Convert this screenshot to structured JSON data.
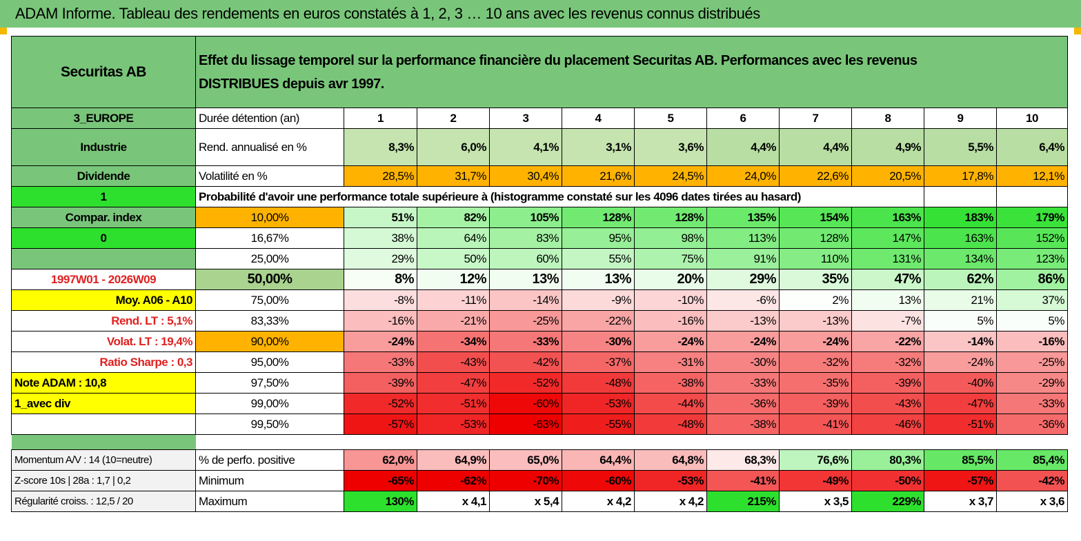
{
  "title": "ADAM Informe. Tableau des rendements en euros constatés à 1, 2, 3 … 10 ans avec les revenus connus distribués",
  "header": {
    "name": "Securitas AB",
    "description": "Effet du lissage temporel sur la performance financière du placement Securitas AB. Performances avec les revenus DISTRIBUES depuis avr 1997."
  },
  "left": {
    "region": "3_EUROPE",
    "sector": "Industrie",
    "div_label": "Dividende",
    "flag1": "1",
    "compar": "Compar. index",
    "flag0": "0",
    "period": "1997W01 - 2026W09",
    "moy": "Moy. A06 - A10",
    "rend_lt": "Rend. LT :   5,1%",
    "volat_lt": "Volat. LT :   19,4%",
    "sharpe": "Ratio Sharpe :     0,3",
    "note": "Note ADAM : 10,8",
    "avec_div": "1_avec div",
    "momentum": "Momentum A/V : 14 (10=neutre)",
    "zscore": "Z-score 10s | 28a : 1,7 | 0,2",
    "regularite": "Régularité croiss. : 12,5 / 20"
  },
  "labels": {
    "duree": "Durée détention (an)",
    "rend": "Rend. annualisé en %",
    "vol": "Volatilité en %",
    "proba": "Probabilité d'avoir une performance totale supérieure à (histogramme constaté sur les 4096 dates tirées au hasard)",
    "positive": "% de perfo. positive",
    "minimum": "Minimum",
    "maximum": "Maximum"
  },
  "years": [
    "1",
    "2",
    "3",
    "4",
    "5",
    "6",
    "7",
    "8",
    "9",
    "10"
  ],
  "rend": [
    "8,3%",
    "6,0%",
    "4,1%",
    "3,1%",
    "3,6%",
    "4,4%",
    "4,4%",
    "4,9%",
    "5,5%",
    "6,4%"
  ],
  "vol": [
    "28,5%",
    "31,7%",
    "30,4%",
    "21,6%",
    "24,5%",
    "24,0%",
    "22,6%",
    "20,5%",
    "17,8%",
    "12,1%"
  ],
  "percentiles": [
    {
      "p": "10,00%",
      "v": [
        "51%",
        "82%",
        "105%",
        "128%",
        "128%",
        "135%",
        "154%",
        "163%",
        "183%",
        "179%"
      ]
    },
    {
      "p": "16,67%",
      "v": [
        "38%",
        "64%",
        "83%",
        "95%",
        "98%",
        "113%",
        "128%",
        "147%",
        "163%",
        "152%"
      ]
    },
    {
      "p": "25,00%",
      "v": [
        "29%",
        "50%",
        "60%",
        "55%",
        "75%",
        "91%",
        "110%",
        "131%",
        "134%",
        "123%"
      ]
    },
    {
      "p": "50,00%",
      "v": [
        "8%",
        "12%",
        "13%",
        "13%",
        "20%",
        "29%",
        "35%",
        "47%",
        "62%",
        "86%"
      ]
    },
    {
      "p": "75,00%",
      "v": [
        "-8%",
        "-11%",
        "-14%",
        "-9%",
        "-10%",
        "-6%",
        "2%",
        "13%",
        "21%",
        "37%"
      ]
    },
    {
      "p": "83,33%",
      "v": [
        "-16%",
        "-21%",
        "-25%",
        "-22%",
        "-16%",
        "-13%",
        "-13%",
        "-7%",
        "5%",
        "5%"
      ]
    },
    {
      "p": "90,00%",
      "v": [
        "-24%",
        "-34%",
        "-33%",
        "-30%",
        "-24%",
        "-24%",
        "-24%",
        "-22%",
        "-14%",
        "-16%"
      ]
    },
    {
      "p": "95,00%",
      "v": [
        "-33%",
        "-43%",
        "-42%",
        "-37%",
        "-31%",
        "-30%",
        "-32%",
        "-32%",
        "-24%",
        "-25%"
      ]
    },
    {
      "p": "97,50%",
      "v": [
        "-39%",
        "-47%",
        "-52%",
        "-48%",
        "-38%",
        "-33%",
        "-35%",
        "-39%",
        "-40%",
        "-29%"
      ]
    },
    {
      "p": "99,00%",
      "v": [
        "-52%",
        "-51%",
        "-60%",
        "-53%",
        "-44%",
        "-36%",
        "-39%",
        "-43%",
        "-47%",
        "-33%"
      ]
    },
    {
      "p": "99,50%",
      "v": [
        "-57%",
        "-53%",
        "-63%",
        "-55%",
        "-48%",
        "-38%",
        "-41%",
        "-46%",
        "-51%",
        "-36%"
      ]
    }
  ],
  "positive": [
    "62,0%",
    "64,9%",
    "65,0%",
    "64,4%",
    "64,8%",
    "68,3%",
    "76,6%",
    "80,3%",
    "85,5%",
    "85,4%"
  ],
  "minimum": [
    "-65%",
    "-62%",
    "-70%",
    "-60%",
    "-53%",
    "-41%",
    "-49%",
    "-50%",
    "-57%",
    "-42%"
  ],
  "maximum": [
    "130%",
    "x 4,1",
    "x 5,4",
    "x 4,2",
    "x 4,2",
    "215%",
    "x 3,5",
    "229%",
    "x 3,7",
    "x 3,6"
  ],
  "colors": {
    "header_green": "#79c67a",
    "bright_green": "#2ee02e",
    "yellow": "#ffff00",
    "orange": "#ffb300",
    "red_text": "#e02020"
  }
}
